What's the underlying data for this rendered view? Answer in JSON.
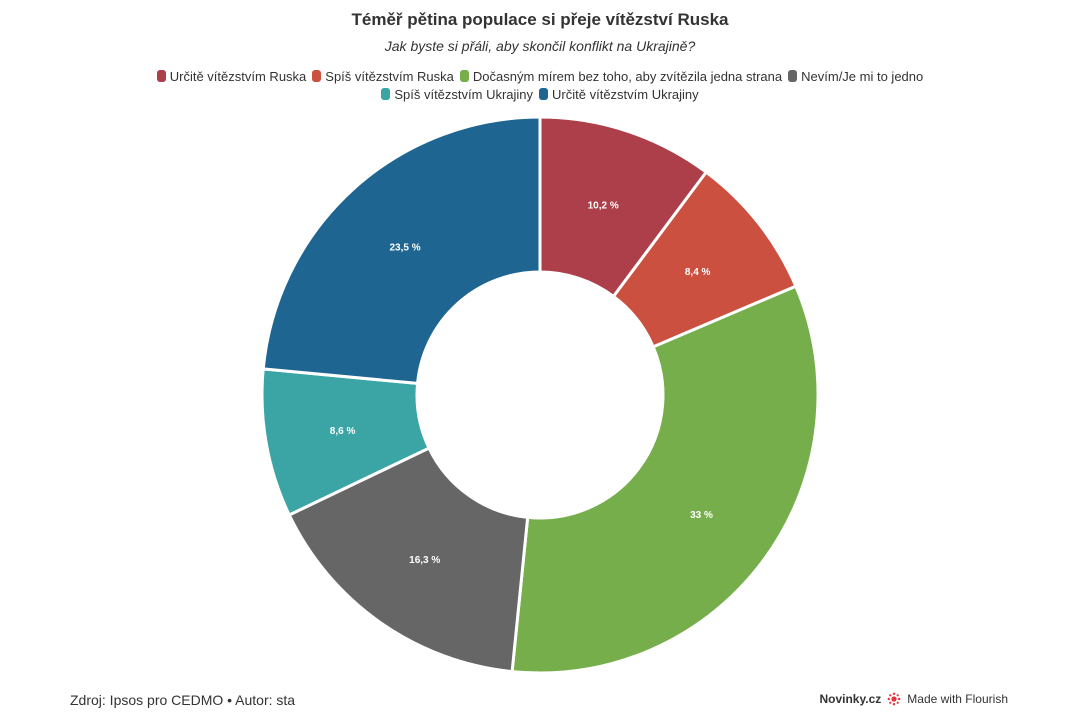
{
  "chart_data": {
    "type": "pie",
    "title": "Téměř pětina populace si přeje vítězství Ruska",
    "subtitle": "Jak byste si přáli, aby skončil konflikt na Ukrajině?",
    "categories": [
      "Určitě vítězstvím Ruska",
      "Spíš vítězstvím Ruska",
      "Dočasným mírem bez toho, aby zvítězila jedna strana",
      "Nevím/Je mi to jedno",
      "Spíš vítězstvím Ukrajiny",
      "Určitě vítězstvím Ukrajiny"
    ],
    "values": [
      10.2,
      8.4,
      33,
      16.3,
      8.6,
      23.5
    ],
    "labels": [
      "10,2 %",
      "8,4 %",
      "33 %",
      "16,3 %",
      "8,6 %",
      "23,5 %"
    ],
    "colors": [
      "#ad3f4a",
      "#cb5040",
      "#75ae4b",
      "#666666",
      "#3ba5a5",
      "#1f6592"
    ],
    "legend_position": "top-center",
    "donut": true
  },
  "footer": {
    "source": "Zdroj: Ipsos pro CEDMO • Autor: sta",
    "brand": "Novinky.cz",
    "credit": "Made with Flourish"
  },
  "icons": {
    "credit": "flourish-icon"
  }
}
